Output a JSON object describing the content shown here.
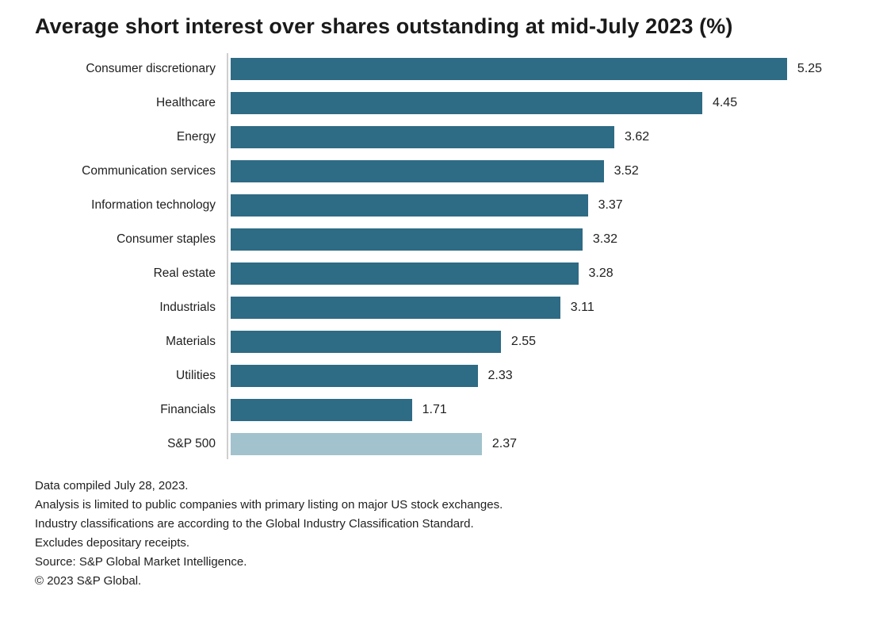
{
  "chart_data": {
    "type": "bar",
    "orientation": "horizontal",
    "title": "Average short interest over shares outstanding at mid-July 2023 (%)",
    "categories": [
      "Consumer discretionary",
      "Healthcare",
      "Energy",
      "Communication services",
      "Information technology",
      "Consumer staples",
      "Real estate",
      "Industrials",
      "Materials",
      "Utilities",
      "Financials",
      "S&P 500"
    ],
    "values": [
      5.25,
      4.45,
      3.62,
      3.52,
      3.37,
      3.32,
      3.28,
      3.11,
      2.55,
      2.33,
      1.71,
      2.37
    ],
    "value_labels": [
      "5.25",
      "4.45",
      "3.62",
      "3.52",
      "3.37",
      "3.32",
      "3.28",
      "3.11",
      "2.55",
      "2.33",
      "1.71",
      "2.37"
    ],
    "highlight_category": "S&P 500",
    "xlim": [
      0,
      5.25
    ],
    "grid": false,
    "legend": "none",
    "xlabel": "",
    "ylabel": "",
    "colors": {
      "bar": "#2e6b85",
      "highlight_bar": "#a2c2cd",
      "axis_line": "#cfcfcf",
      "text": "#1a1a1a"
    }
  },
  "footnotes": {
    "line1": "Data compiled July 28, 2023.",
    "line2": "Analysis is limited to public companies with primary listing on major US stock exchanges.",
    "line3": "Industry classifications are according to the Global Industry Classification Standard.",
    "line4": "Excludes depositary receipts.",
    "line5": "Source: S&P Global Market Intelligence.",
    "line6": "© 2023 S&P Global."
  }
}
